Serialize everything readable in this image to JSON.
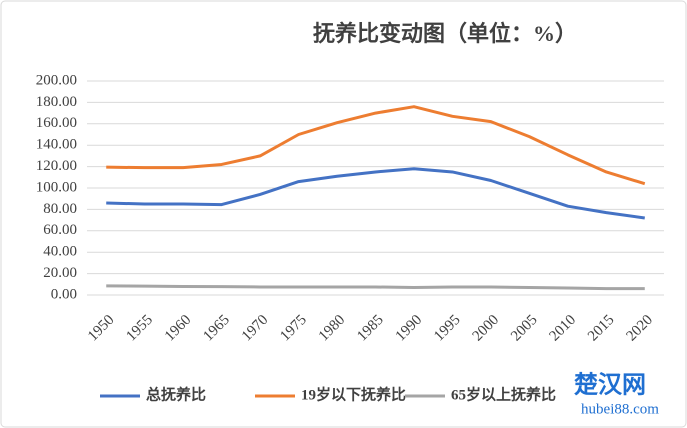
{
  "chart_data": {
    "type": "line",
    "title": "抚养比变动图（单位：%）",
    "categories": [
      "1950",
      "1955",
      "1960",
      "1965",
      "1970",
      "1975",
      "1980",
      "1985",
      "1990",
      "1995",
      "2000",
      "2005",
      "2010",
      "2015",
      "2020"
    ],
    "series": [
      {
        "name": "总抚养比",
        "color": "#4472c4",
        "values": [
          86,
          85,
          85,
          84.5,
          94,
          106,
          111,
          115,
          118,
          115,
          107,
          95,
          83,
          77,
          72
        ]
      },
      {
        "name": "19岁以下抚养比",
        "color": "#ed7d31",
        "values": [
          119.5,
          119,
          119,
          122,
          130,
          150,
          161,
          170,
          176,
          167,
          162,
          148,
          131,
          115,
          104
        ]
      },
      {
        "name": "65岁以上抚养比",
        "color": "#a5a5a5",
        "values": [
          8.5,
          8.3,
          8,
          7.8,
          7.5,
          7.5,
          7.5,
          7.5,
          7,
          7.5,
          7.5,
          7,
          6.5,
          6,
          6
        ]
      }
    ],
    "ylim": [
      0,
      200
    ],
    "yticks": [
      {
        "value": 0,
        "label": "0.00"
      },
      {
        "value": 20,
        "label": "20.00"
      },
      {
        "value": 40,
        "label": "40.00"
      },
      {
        "value": 60,
        "label": "60.00"
      },
      {
        "value": 80,
        "label": "80.00"
      },
      {
        "value": 100,
        "label": "100.00"
      },
      {
        "value": 120,
        "label": "120.00"
      },
      {
        "value": 140,
        "label": "140.00"
      },
      {
        "value": 160,
        "label": "160.00"
      },
      {
        "value": 180,
        "label": "180.00"
      },
      {
        "value": 200,
        "label": "200.00"
      }
    ],
    "grid": true,
    "watermark": {
      "name": "楚汉网",
      "url": "hubei88.com"
    }
  }
}
